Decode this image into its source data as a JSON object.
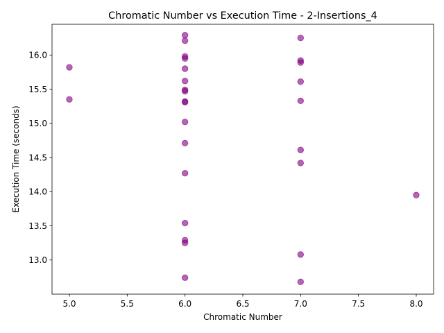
{
  "chart_data": {
    "type": "scatter",
    "title": "Chromatic Number vs Execution Time - 2-Insertions_4",
    "xlabel": "Chromatic Number",
    "ylabel": "Execution Time (seconds)",
    "xlim": [
      4.85,
      8.15
    ],
    "ylim": [
      12.5,
      16.45
    ],
    "xticks": [
      5.0,
      5.5,
      6.0,
      6.5,
      7.0,
      7.5,
      8.0
    ],
    "xtick_labels": [
      "5.0",
      "5.5",
      "6.0",
      "6.5",
      "7.0",
      "7.5",
      "8.0"
    ],
    "yticks": [
      13.0,
      13.5,
      14.0,
      14.5,
      15.0,
      15.5,
      16.0
    ],
    "ytick_labels": [
      "13.0",
      "13.5",
      "14.0",
      "14.5",
      "15.0",
      "15.5",
      "16.0"
    ],
    "grid": false,
    "legend": "none",
    "marker_color": "#800080",
    "marker_alpha": 0.6,
    "points": [
      {
        "x": 5,
        "y": 15.82
      },
      {
        "x": 5,
        "y": 15.35
      },
      {
        "x": 6,
        "y": 16.29
      },
      {
        "x": 6,
        "y": 16.21
      },
      {
        "x": 6,
        "y": 15.98
      },
      {
        "x": 6,
        "y": 15.95
      },
      {
        "x": 6,
        "y": 15.8
      },
      {
        "x": 6,
        "y": 15.62
      },
      {
        "x": 6,
        "y": 15.49
      },
      {
        "x": 6,
        "y": 15.47
      },
      {
        "x": 6,
        "y": 15.32
      },
      {
        "x": 6,
        "y": 15.31
      },
      {
        "x": 6,
        "y": 15.02
      },
      {
        "x": 6,
        "y": 14.71
      },
      {
        "x": 6,
        "y": 14.27
      },
      {
        "x": 6,
        "y": 13.54
      },
      {
        "x": 6,
        "y": 13.29
      },
      {
        "x": 6,
        "y": 13.25
      },
      {
        "x": 6,
        "y": 12.74
      },
      {
        "x": 7,
        "y": 16.25
      },
      {
        "x": 7,
        "y": 15.92
      },
      {
        "x": 7,
        "y": 15.89
      },
      {
        "x": 7,
        "y": 15.61
      },
      {
        "x": 7,
        "y": 15.33
      },
      {
        "x": 7,
        "y": 14.61
      },
      {
        "x": 7,
        "y": 14.42
      },
      {
        "x": 7,
        "y": 13.08
      },
      {
        "x": 7,
        "y": 12.68
      },
      {
        "x": 8,
        "y": 13.95
      }
    ]
  }
}
